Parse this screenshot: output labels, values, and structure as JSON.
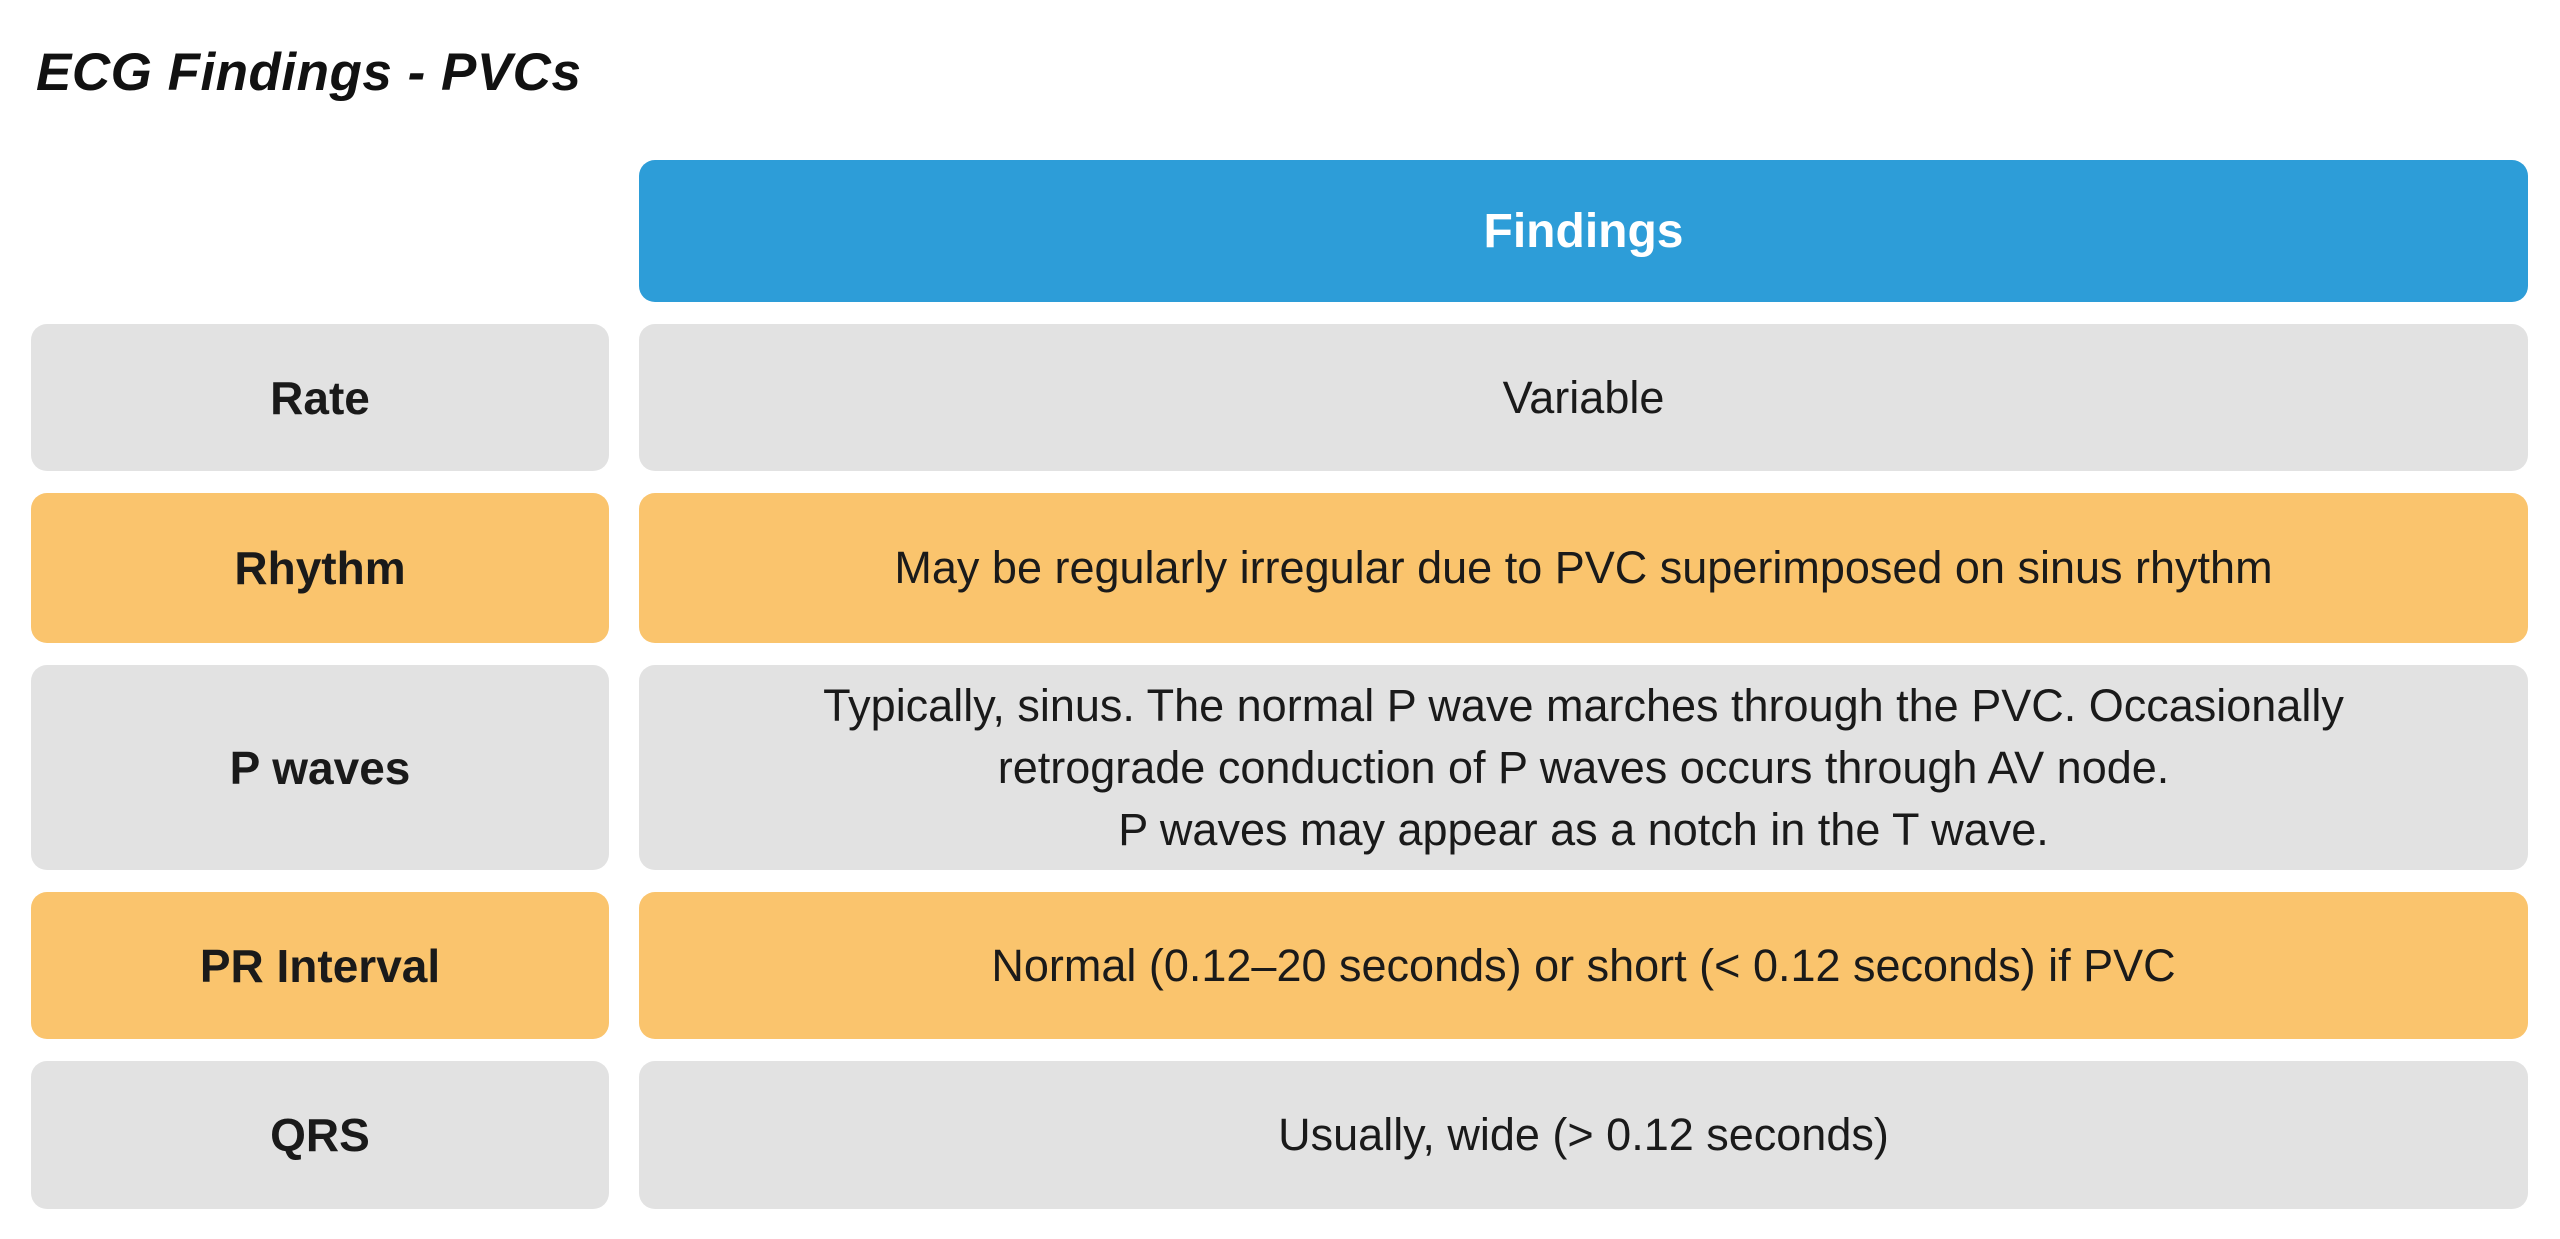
{
  "page": {
    "title": "ECG Findings - PVCs"
  },
  "colors": {
    "header_blue": "#2d9dd8",
    "row_gray": "#e2e2e2",
    "row_orange": "#fac46d",
    "header_text": "#ffffff",
    "body_text": "#1a1a1a"
  },
  "table": {
    "header": {
      "label": "Findings"
    },
    "rows": [
      {
        "label": "Rate",
        "value": "Variable",
        "tone": "gray"
      },
      {
        "label": "Rhythm",
        "value": "May be regularly irregular due to PVC superimposed on sinus rhythm",
        "tone": "orange"
      },
      {
        "label": "P waves",
        "value": "Typically, sinus. The normal P wave marches through the PVC. Occasionally\nretrograde conduction of P waves occurs through AV node.\nP waves may appear as a notch in the T wave.",
        "tone": "gray"
      },
      {
        "label": "PR Interval",
        "value": "Normal (0.12–20 seconds) or short (< 0.12 seconds) if PVC",
        "tone": "orange"
      },
      {
        "label": "QRS",
        "value": "Usually, wide (> 0.12 seconds)",
        "tone": "gray"
      }
    ]
  }
}
